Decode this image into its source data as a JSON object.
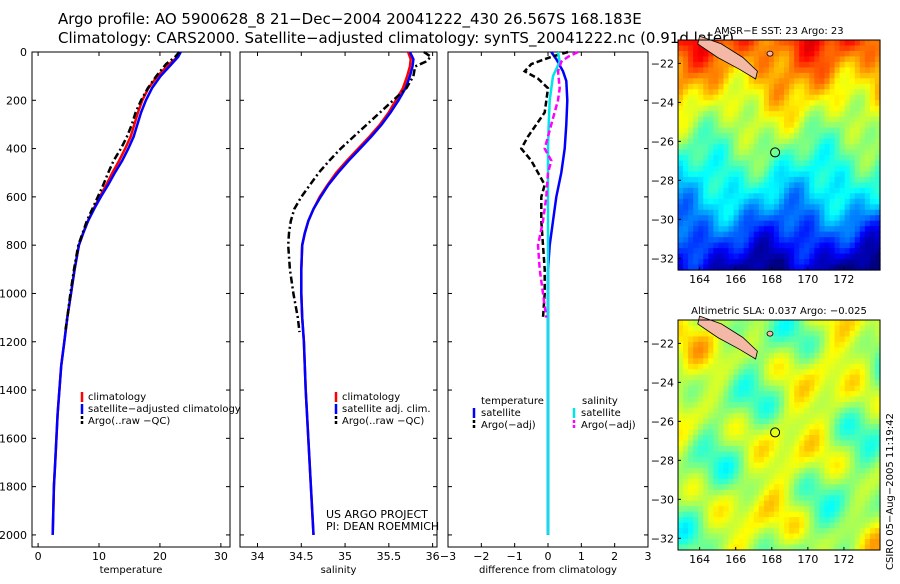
{
  "header": {
    "line1": "Argo profile: AO 5900628_8 21−Dec−2004 20041222_430 26.567S 168.183E",
    "line2": "Climatology: CARS2000. Satellite−adjusted climatology: synTS_20041222.nc (0.91d later)"
  },
  "side_label": "CSIRO 05−Aug−2005 11:19:42",
  "project_note": {
    "line1": "US ARGO PROJECT",
    "line2": "PI: DEAN ROEMMICH"
  },
  "colors": {
    "climatology": "#ff0000",
    "satellite": "#0000ff",
    "argo": "#000000",
    "sal_satellite": "#00e5e5",
    "sal_argo": "#ff00ff"
  },
  "chart_data": [
    {
      "id": "temperature",
      "type": "line",
      "xlabel": "temperature",
      "ylabel": "",
      "xlim": [
        -1,
        31.5
      ],
      "ylim": [
        0,
        2050
      ],
      "y_inverted": true,
      "xticks": [
        0,
        10,
        20,
        30
      ],
      "yticks": [
        0,
        200,
        400,
        600,
        800,
        1000,
        1200,
        1400,
        1600,
        1800,
        2000
      ],
      "legend": [
        "climatology",
        "satellite−adjusted climatology",
        "Argo(..raw −QC)"
      ],
      "series": [
        {
          "name": "climatology",
          "color": "#ff0000",
          "style": "solid",
          "points": [
            [
              23.3,
              0
            ],
            [
              22.9,
              20
            ],
            [
              21.5,
              50
            ],
            [
              19.6,
              100
            ],
            [
              18.1,
              150
            ],
            [
              17.1,
              200
            ],
            [
              16.4,
              250
            ],
            [
              15.8,
              300
            ],
            [
              15.2,
              350
            ],
            [
              14.3,
              400
            ],
            [
              13.3,
              450
            ],
            [
              12.2,
              500
            ],
            [
              11.2,
              550
            ],
            [
              10.1,
              600
            ],
            [
              9.1,
              650
            ],
            [
              8.2,
              700
            ],
            [
              7.4,
              750
            ],
            [
              6.7,
              800
            ],
            [
              6.0,
              900
            ],
            [
              5.4,
              1000
            ],
            [
              4.8,
              1100
            ],
            [
              4.3,
              1200
            ],
            [
              3.8,
              1300
            ],
            [
              3.5,
              1400
            ],
            [
              3.2,
              1500
            ],
            [
              3.0,
              1600
            ],
            [
              2.8,
              1700
            ],
            [
              2.6,
              1800
            ],
            [
              2.5,
              1900
            ],
            [
              2.4,
              2000
            ]
          ]
        },
        {
          "name": "satellite−adjusted climatology",
          "color": "#0000ff",
          "style": "solid",
          "points": [
            [
              23.4,
              0
            ],
            [
              23.0,
              20
            ],
            [
              21.9,
              50
            ],
            [
              20.1,
              100
            ],
            [
              18.7,
              150
            ],
            [
              17.7,
              200
            ],
            [
              16.9,
              250
            ],
            [
              16.3,
              300
            ],
            [
              15.7,
              350
            ],
            [
              14.8,
              400
            ],
            [
              13.8,
              450
            ],
            [
              12.6,
              500
            ],
            [
              11.5,
              550
            ],
            [
              10.3,
              600
            ],
            [
              9.2,
              650
            ],
            [
              8.2,
              700
            ],
            [
              7.4,
              750
            ],
            [
              6.7,
              800
            ],
            [
              6.0,
              900
            ],
            [
              5.4,
              1000
            ],
            [
              4.8,
              1100
            ],
            [
              4.3,
              1200
            ],
            [
              3.8,
              1300
            ],
            [
              3.5,
              1400
            ],
            [
              3.2,
              1500
            ],
            [
              3.0,
              1600
            ],
            [
              2.8,
              1700
            ],
            [
              2.6,
              1800
            ],
            [
              2.5,
              1900
            ],
            [
              2.4,
              2000
            ]
          ]
        },
        {
          "name": "Argo(..raw −QC)",
          "color": "#000000",
          "style": "dashdot",
          "points": [
            [
              23.2,
              0
            ],
            [
              22.5,
              20
            ],
            [
              21.0,
              50
            ],
            [
              19.4,
              100
            ],
            [
              18.0,
              150
            ],
            [
              16.9,
              200
            ],
            [
              16.0,
              250
            ],
            [
              15.4,
              300
            ],
            [
              14.6,
              350
            ],
            [
              13.6,
              400
            ],
            [
              12.4,
              450
            ],
            [
              11.5,
              500
            ],
            [
              10.7,
              550
            ],
            [
              9.8,
              600
            ],
            [
              8.9,
              650
            ],
            [
              8.0,
              700
            ],
            [
              7.3,
              750
            ],
            [
              6.6,
              800
            ],
            [
              5.9,
              900
            ],
            [
              5.3,
              1000
            ],
            [
              4.8,
              1100
            ],
            [
              4.5,
              1150
            ]
          ]
        }
      ]
    },
    {
      "id": "salinity",
      "type": "line",
      "xlabel": "salinity",
      "xlim": [
        33.8,
        36.05
      ],
      "ylim": [
        0,
        2050
      ],
      "y_inverted": true,
      "xticks": [
        34,
        34.5,
        35,
        35.5,
        36
      ],
      "legend": [
        "climatology",
        "satellite adj. clim.",
        "Argo(..raw −QC)"
      ],
      "series": [
        {
          "name": "climatology",
          "color": "#ff0000",
          "style": "solid",
          "points": [
            [
              35.72,
              0
            ],
            [
              35.75,
              30
            ],
            [
              35.74,
              60
            ],
            [
              35.71,
              100
            ],
            [
              35.66,
              150
            ],
            [
              35.58,
              200
            ],
            [
              35.5,
              250
            ],
            [
              35.4,
              300
            ],
            [
              35.28,
              350
            ],
            [
              35.15,
              400
            ],
            [
              35.02,
              450
            ],
            [
              34.9,
              500
            ],
            [
              34.8,
              550
            ],
            [
              34.71,
              600
            ],
            [
              34.64,
              650
            ],
            [
              34.58,
              700
            ],
            [
              34.54,
              750
            ],
            [
              34.51,
              800
            ],
            [
              34.5,
              900
            ],
            [
              34.5,
              1000
            ],
            [
              34.51,
              1100
            ],
            [
              34.53,
              1200
            ],
            [
              34.55,
              1400
            ],
            [
              34.58,
              1600
            ],
            [
              34.61,
              1800
            ],
            [
              34.64,
              2000
            ]
          ]
        },
        {
          "name": "satellite adj. clim.",
          "color": "#0000ff",
          "style": "solid",
          "points": [
            [
              35.74,
              0
            ],
            [
              35.78,
              30
            ],
            [
              35.77,
              60
            ],
            [
              35.74,
              100
            ],
            [
              35.69,
              150
            ],
            [
              35.61,
              200
            ],
            [
              35.52,
              250
            ],
            [
              35.42,
              300
            ],
            [
              35.3,
              350
            ],
            [
              35.17,
              400
            ],
            [
              35.04,
              450
            ],
            [
              34.92,
              500
            ],
            [
              34.81,
              550
            ],
            [
              34.72,
              600
            ],
            [
              34.64,
              650
            ],
            [
              34.58,
              700
            ],
            [
              34.54,
              750
            ],
            [
              34.51,
              800
            ],
            [
              34.5,
              900
            ],
            [
              34.5,
              1000
            ],
            [
              34.51,
              1100
            ],
            [
              34.53,
              1200
            ],
            [
              34.55,
              1400
            ],
            [
              34.58,
              1600
            ],
            [
              34.61,
              1800
            ],
            [
              34.64,
              2000
            ]
          ]
        },
        {
          "name": "Argo(..raw −QC)",
          "color": "#000000",
          "style": "dashdot",
          "points": [
            [
              35.9,
              0
            ],
            [
              35.98,
              20
            ],
            [
              35.92,
              40
            ],
            [
              35.8,
              60
            ],
            [
              35.78,
              100
            ],
            [
              35.7,
              150
            ],
            [
              35.55,
              200
            ],
            [
              35.4,
              250
            ],
            [
              35.25,
              300
            ],
            [
              35.1,
              350
            ],
            [
              34.95,
              400
            ],
            [
              34.82,
              450
            ],
            [
              34.7,
              500
            ],
            [
              34.6,
              550
            ],
            [
              34.5,
              600
            ],
            [
              34.42,
              650
            ],
            [
              34.38,
              700
            ],
            [
              34.36,
              750
            ],
            [
              34.35,
              800
            ],
            [
              34.37,
              900
            ],
            [
              34.41,
              1000
            ],
            [
              34.46,
              1100
            ],
            [
              34.48,
              1160
            ]
          ]
        }
      ]
    },
    {
      "id": "difference",
      "type": "line",
      "xlabel": "difference from climatology",
      "xlim": [
        -3,
        3
      ],
      "ylim": [
        0,
        2050
      ],
      "y_inverted": true,
      "xticks": [
        -3,
        -2,
        -1,
        0,
        1,
        2,
        3
      ],
      "legend_left_title": "temperature",
      "legend_left": [
        "satellite",
        "Argo(−adj)"
      ],
      "legend_right_title": "salinity",
      "legend_right": [
        "satellite",
        "Argo(−adj)"
      ],
      "series": [
        {
          "name": "temperature satellite",
          "color": "#0000ff",
          "style": "solid",
          "points": [
            [
              0.1,
              0
            ],
            [
              0.25,
              30
            ],
            [
              0.45,
              80
            ],
            [
              0.55,
              120
            ],
            [
              0.58,
              200
            ],
            [
              0.55,
              300
            ],
            [
              0.5,
              400
            ],
            [
              0.4,
              500
            ],
            [
              0.25,
              600
            ],
            [
              0.15,
              700
            ],
            [
              0.05,
              800
            ],
            [
              0.0,
              900
            ],
            [
              0.0,
              2000
            ]
          ]
        },
        {
          "name": "temperature Argo(−adj)",
          "color": "#000000",
          "style": "dashed",
          "points": [
            [
              0.6,
              0
            ],
            [
              0.1,
              20
            ],
            [
              -0.5,
              50
            ],
            [
              -0.7,
              80
            ],
            [
              -0.3,
              110
            ],
            [
              0.0,
              150
            ],
            [
              -0.1,
              250
            ],
            [
              -0.6,
              350
            ],
            [
              -0.8,
              400
            ],
            [
              -0.5,
              450
            ],
            [
              -0.3,
              500
            ],
            [
              -0.1,
              550
            ],
            [
              -0.2,
              600
            ],
            [
              -0.2,
              700
            ],
            [
              -0.15,
              800
            ],
            [
              -0.1,
              900
            ],
            [
              -0.1,
              1000
            ],
            [
              -0.15,
              1100
            ]
          ]
        },
        {
          "name": "salinity satellite",
          "color": "#00e5e5",
          "style": "solid",
          "points": [
            [
              0.3,
              0
            ],
            [
              0.35,
              40
            ],
            [
              0.15,
              100
            ],
            [
              0.05,
              200
            ],
            [
              0.02,
              300
            ],
            [
              0.0,
              400
            ],
            [
              0.0,
              2000
            ]
          ]
        },
        {
          "name": "salinity Argo(−adj)",
          "color": "#ff00ff",
          "style": "dashed",
          "points": [
            [
              0.9,
              0
            ],
            [
              0.6,
              20
            ],
            [
              0.4,
              40
            ],
            [
              0.3,
              80
            ],
            [
              0.35,
              150
            ],
            [
              0.3,
              200
            ],
            [
              0.1,
              300
            ],
            [
              -0.1,
              400
            ],
            [
              0.1,
              450
            ],
            [
              0.0,
              500
            ],
            [
              -0.05,
              600
            ],
            [
              -0.15,
              700
            ],
            [
              -0.3,
              800
            ],
            [
              -0.25,
              900
            ],
            [
              -0.15,
              1000
            ],
            [
              -0.05,
              1100
            ]
          ]
        }
      ]
    },
    {
      "id": "sst_map",
      "type": "heatmap",
      "title": "AMSR−E SST: 23 Argo: 23",
      "xlim": [
        162.8,
        174
      ],
      "ylim": [
        -32.6,
        -20.8
      ],
      "xticks": [
        164,
        166,
        168,
        170,
        172
      ],
      "yticks": [
        -22,
        -24,
        -26,
        -28,
        -30,
        -32
      ],
      "float_location": [
        168.183,
        -26.567
      ],
      "colormap": "jet"
    },
    {
      "id": "sla_map",
      "type": "heatmap",
      "title": "Altimetric SLA: 0.037 Argo: −0.025",
      "xlim": [
        162.8,
        174
      ],
      "ylim": [
        -32.6,
        -20.8
      ],
      "xticks": [
        164,
        166,
        168,
        170,
        172
      ],
      "yticks": [
        -22,
        -24,
        -26,
        -28,
        -30,
        -32
      ],
      "float_location": [
        168.183,
        -26.567
      ],
      "colormap": "jet"
    }
  ]
}
